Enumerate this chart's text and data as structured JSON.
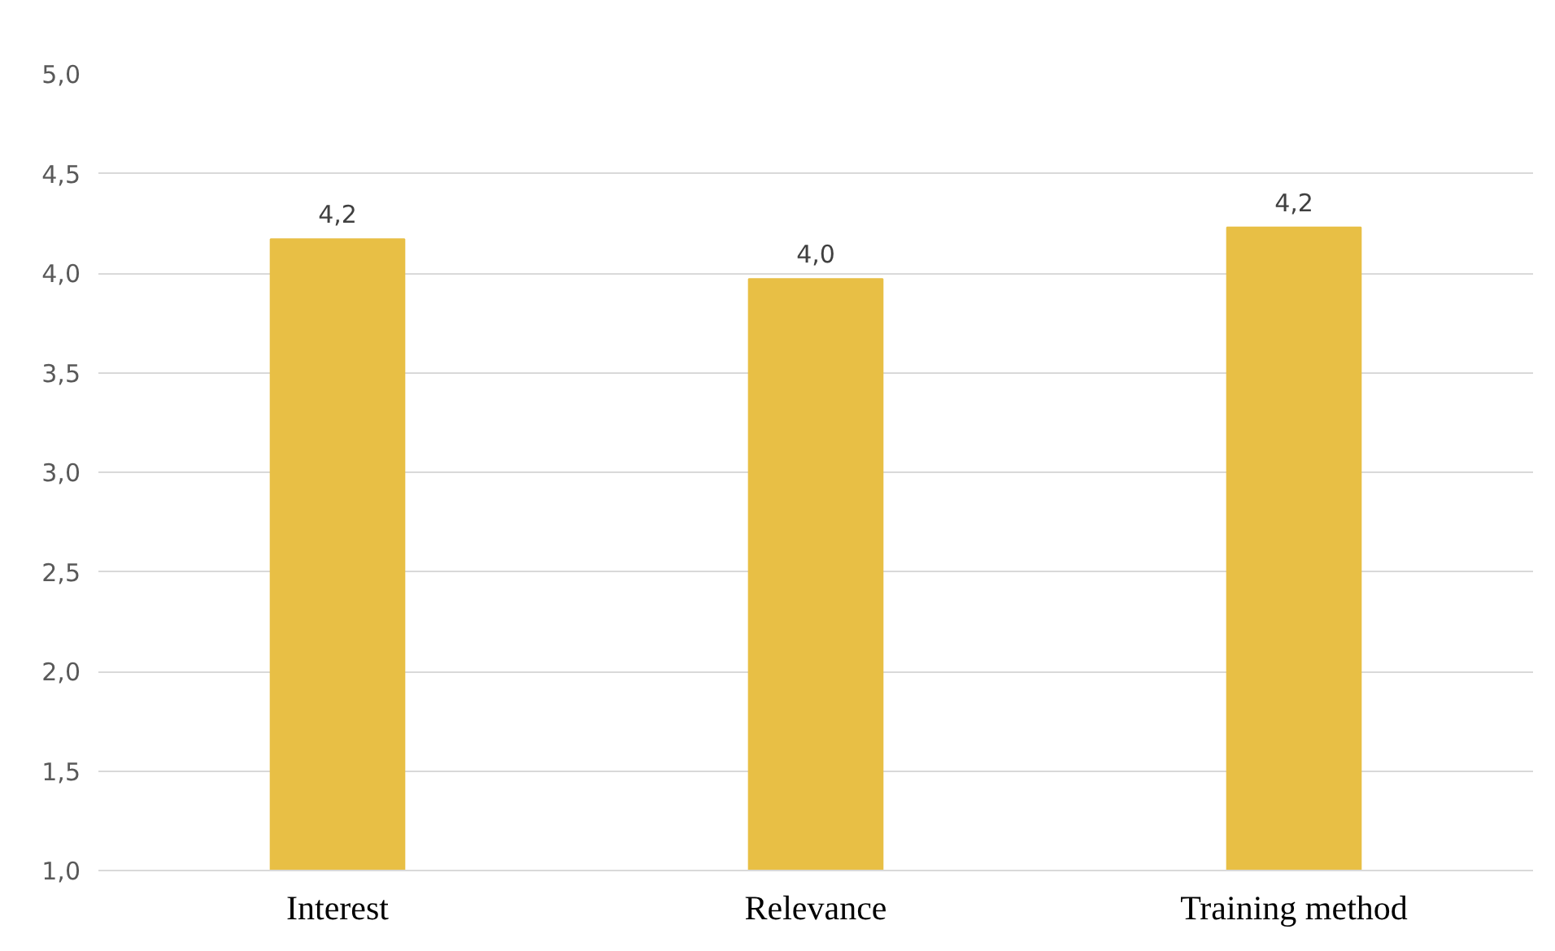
{
  "chart_data": {
    "type": "bar",
    "categories": [
      "Interest",
      "Relevance",
      "Training method"
    ],
    "values": [
      4.17,
      3.97,
      4.23
    ],
    "value_labels": [
      "4,2",
      "4,0",
      "4,2"
    ],
    "color": "#e8bf45",
    "ylim": [
      1.0,
      5.0
    ],
    "yticks": [
      {
        "value": 1.0,
        "label": "1,0"
      },
      {
        "value": 1.5,
        "label": "1,5"
      },
      {
        "value": 2.0,
        "label": "2,0"
      },
      {
        "value": 2.5,
        "label": "2,5"
      },
      {
        "value": 3.0,
        "label": "3,0"
      },
      {
        "value": 3.5,
        "label": "3,5"
      },
      {
        "value": 4.0,
        "label": "4,0"
      },
      {
        "value": 4.5,
        "label": "4,5"
      },
      {
        "value": 5.0,
        "label": "5,0"
      }
    ],
    "grid": "y"
  }
}
